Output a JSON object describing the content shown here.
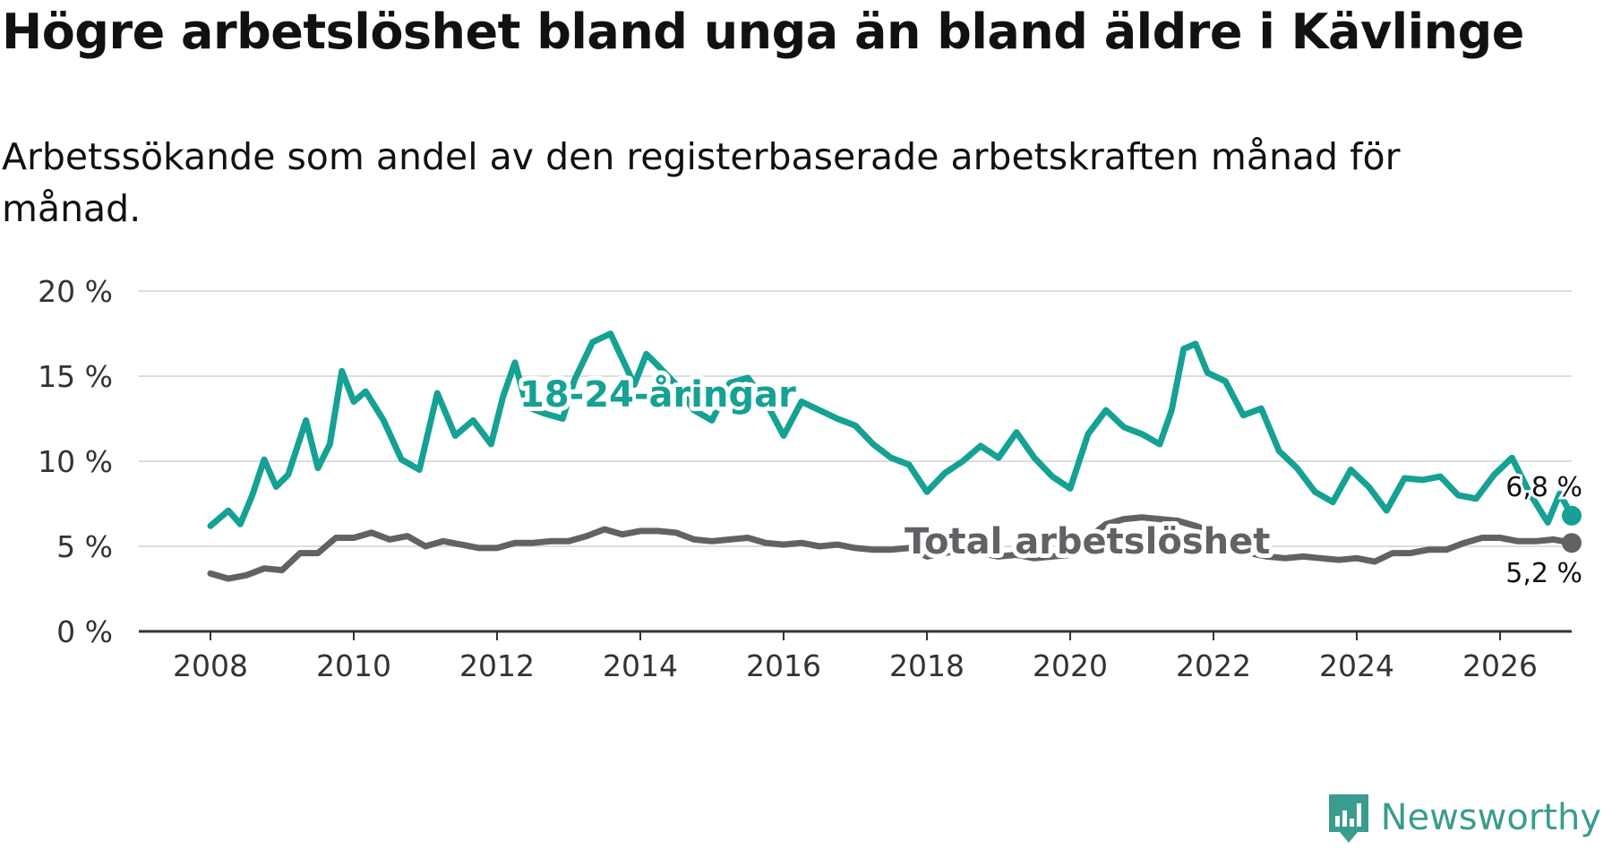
{
  "title": "Högre arbetslöshet bland unga än bland äldre i Kävlinge",
  "subtitle": "Arbetssökande som andel av den registerbaserade arbetskraften månad för månad.",
  "brand": {
    "name": "Newsworthy",
    "icon": "newsworthy-logo-icon",
    "color": "#3a9c8e"
  },
  "colors": {
    "youth": "#15a193",
    "total": "#626166",
    "grid": "#dddddd",
    "axis": "#333333"
  },
  "chart_data": {
    "type": "line",
    "title": "Högre arbetslöshet bland unga än bland äldre i Kävlinge",
    "subtitle": "Arbetssökande som andel av den registerbaserade arbetskraften månad för månad.",
    "xlabel": "",
    "ylabel": "",
    "xlim": [
      "2007-01",
      "2027-01"
    ],
    "ylim": [
      0,
      20
    ],
    "x_ticks": [
      "2008",
      "2010",
      "2012",
      "2014",
      "2016",
      "2018",
      "2020",
      "2022",
      "2024",
      "2026"
    ],
    "y_ticks": [
      "0 %",
      "5 %",
      "10 %",
      "15 %",
      "20 %"
    ],
    "grid": true,
    "legend": "inline labels",
    "series": [
      {
        "name": "18-24-åringar",
        "color": "#15a193",
        "end_label": "6,8 %",
        "points": [
          [
            "2008-01",
            6.2
          ],
          [
            "2008-04",
            7.1
          ],
          [
            "2008-06",
            6.3
          ],
          [
            "2008-08",
            8.0
          ],
          [
            "2008-10",
            10.1
          ],
          [
            "2008-12",
            8.5
          ],
          [
            "2009-02",
            9.2
          ],
          [
            "2009-05",
            12.4
          ],
          [
            "2009-07",
            9.6
          ],
          [
            "2009-09",
            11.0
          ],
          [
            "2009-11",
            15.3
          ],
          [
            "2010-01",
            13.5
          ],
          [
            "2010-03",
            14.1
          ],
          [
            "2010-06",
            12.4
          ],
          [
            "2010-09",
            10.1
          ],
          [
            "2010-12",
            9.5
          ],
          [
            "2011-03",
            14.0
          ],
          [
            "2011-06",
            11.5
          ],
          [
            "2011-09",
            12.4
          ],
          [
            "2011-12",
            11.0
          ],
          [
            "2012-02",
            13.8
          ],
          [
            "2012-04",
            15.8
          ],
          [
            "2012-06",
            13.2
          ],
          [
            "2012-09",
            12.8
          ],
          [
            "2012-12",
            12.5
          ],
          [
            "2013-02",
            14.8
          ],
          [
            "2013-05",
            17.0
          ],
          [
            "2013-08",
            17.5
          ],
          [
            "2013-10",
            16.0
          ],
          [
            "2013-12",
            14.5
          ],
          [
            "2014-02",
            16.3
          ],
          [
            "2014-04",
            15.6
          ],
          [
            "2014-07",
            14.5
          ],
          [
            "2014-10",
            13.0
          ],
          [
            "2015-01",
            12.4
          ],
          [
            "2015-04",
            14.6
          ],
          [
            "2015-07",
            14.9
          ],
          [
            "2015-10",
            13.5
          ],
          [
            "2016-01",
            11.5
          ],
          [
            "2016-04",
            13.5
          ],
          [
            "2016-07",
            13.0
          ],
          [
            "2016-10",
            12.5
          ],
          [
            "2017-01",
            12.1
          ],
          [
            "2017-04",
            11.0
          ],
          [
            "2017-07",
            10.2
          ],
          [
            "2017-10",
            9.8
          ],
          [
            "2018-01",
            8.2
          ],
          [
            "2018-04",
            9.3
          ],
          [
            "2018-07",
            10.0
          ],
          [
            "2018-10",
            10.9
          ],
          [
            "2019-01",
            10.2
          ],
          [
            "2019-04",
            11.7
          ],
          [
            "2019-07",
            10.2
          ],
          [
            "2019-10",
            9.1
          ],
          [
            "2020-01",
            8.4
          ],
          [
            "2020-04",
            11.6
          ],
          [
            "2020-07",
            13.0
          ],
          [
            "2020-10",
            12.0
          ],
          [
            "2021-01",
            11.6
          ],
          [
            "2021-04",
            11.0
          ],
          [
            "2021-06",
            13.0
          ],
          [
            "2021-08",
            16.6
          ],
          [
            "2021-10",
            16.9
          ],
          [
            "2021-12",
            15.2
          ],
          [
            "2022-03",
            14.7
          ],
          [
            "2022-06",
            12.7
          ],
          [
            "2022-09",
            13.1
          ],
          [
            "2022-12",
            10.6
          ],
          [
            "2023-03",
            9.6
          ],
          [
            "2023-06",
            8.2
          ],
          [
            "2023-09",
            7.6
          ],
          [
            "2023-12",
            9.5
          ],
          [
            "2024-03",
            8.5
          ],
          [
            "2024-06",
            7.1
          ],
          [
            "2024-09",
            9.0
          ],
          [
            "2024-12",
            8.9
          ],
          [
            "2025-03",
            9.1
          ],
          [
            "2025-06",
            8.0
          ],
          [
            "2025-09",
            7.8
          ],
          [
            "2025-12",
            9.2
          ],
          [
            "2026-03",
            10.2
          ],
          [
            "2026-06",
            8.1
          ],
          [
            "2026-09",
            6.4
          ],
          [
            "2026-11",
            8.1
          ],
          [
            "2027-01",
            6.8
          ]
        ]
      },
      {
        "name": "Total arbetslöshet",
        "color": "#626166",
        "end_label": "5,2 %",
        "points": [
          [
            "2008-01",
            3.4
          ],
          [
            "2008-04",
            3.1
          ],
          [
            "2008-07",
            3.3
          ],
          [
            "2008-10",
            3.7
          ],
          [
            "2009-01",
            3.6
          ],
          [
            "2009-04",
            4.6
          ],
          [
            "2009-07",
            4.6
          ],
          [
            "2009-10",
            5.5
          ],
          [
            "2010-01",
            5.5
          ],
          [
            "2010-04",
            5.8
          ],
          [
            "2010-07",
            5.4
          ],
          [
            "2010-10",
            5.6
          ],
          [
            "2011-01",
            5.0
          ],
          [
            "2011-04",
            5.3
          ],
          [
            "2011-07",
            5.1
          ],
          [
            "2011-10",
            4.9
          ],
          [
            "2012-01",
            4.9
          ],
          [
            "2012-04",
            5.2
          ],
          [
            "2012-07",
            5.2
          ],
          [
            "2012-10",
            5.3
          ],
          [
            "2013-01",
            5.3
          ],
          [
            "2013-04",
            5.6
          ],
          [
            "2013-07",
            6.0
          ],
          [
            "2013-10",
            5.7
          ],
          [
            "2014-01",
            5.9
          ],
          [
            "2014-04",
            5.9
          ],
          [
            "2014-07",
            5.8
          ],
          [
            "2014-10",
            5.4
          ],
          [
            "2015-01",
            5.3
          ],
          [
            "2015-04",
            5.4
          ],
          [
            "2015-07",
            5.5
          ],
          [
            "2015-10",
            5.2
          ],
          [
            "2016-01",
            5.1
          ],
          [
            "2016-04",
            5.2
          ],
          [
            "2016-07",
            5.0
          ],
          [
            "2016-10",
            5.1
          ],
          [
            "2017-01",
            4.9
          ],
          [
            "2017-04",
            4.8
          ],
          [
            "2017-07",
            4.8
          ],
          [
            "2017-10",
            4.9
          ],
          [
            "2018-01",
            4.4
          ],
          [
            "2018-04",
            4.6
          ],
          [
            "2018-07",
            4.8
          ],
          [
            "2018-10",
            4.6
          ],
          [
            "2019-01",
            4.4
          ],
          [
            "2019-04",
            4.5
          ],
          [
            "2019-07",
            4.3
          ],
          [
            "2019-10",
            4.4
          ],
          [
            "2020-01",
            4.5
          ],
          [
            "2020-04",
            5.5
          ],
          [
            "2020-07",
            6.3
          ],
          [
            "2020-10",
            6.6
          ],
          [
            "2021-01",
            6.7
          ],
          [
            "2021-04",
            6.6
          ],
          [
            "2021-07",
            6.5
          ],
          [
            "2021-10",
            6.2
          ],
          [
            "2022-01",
            5.8
          ],
          [
            "2022-04",
            5.3
          ],
          [
            "2022-07",
            4.6
          ],
          [
            "2022-10",
            4.4
          ],
          [
            "2023-01",
            4.3
          ],
          [
            "2023-04",
            4.4
          ],
          [
            "2023-07",
            4.3
          ],
          [
            "2023-10",
            4.2
          ],
          [
            "2024-01",
            4.3
          ],
          [
            "2024-04",
            4.1
          ],
          [
            "2024-07",
            4.6
          ],
          [
            "2024-10",
            4.6
          ],
          [
            "2025-01",
            4.8
          ],
          [
            "2025-04",
            4.8
          ],
          [
            "2025-07",
            5.2
          ],
          [
            "2025-10",
            5.5
          ],
          [
            "2026-01",
            5.5
          ],
          [
            "2026-04",
            5.3
          ],
          [
            "2026-07",
            5.3
          ],
          [
            "2026-10",
            5.4
          ],
          [
            "2027-01",
            5.2
          ]
        ]
      }
    ]
  }
}
